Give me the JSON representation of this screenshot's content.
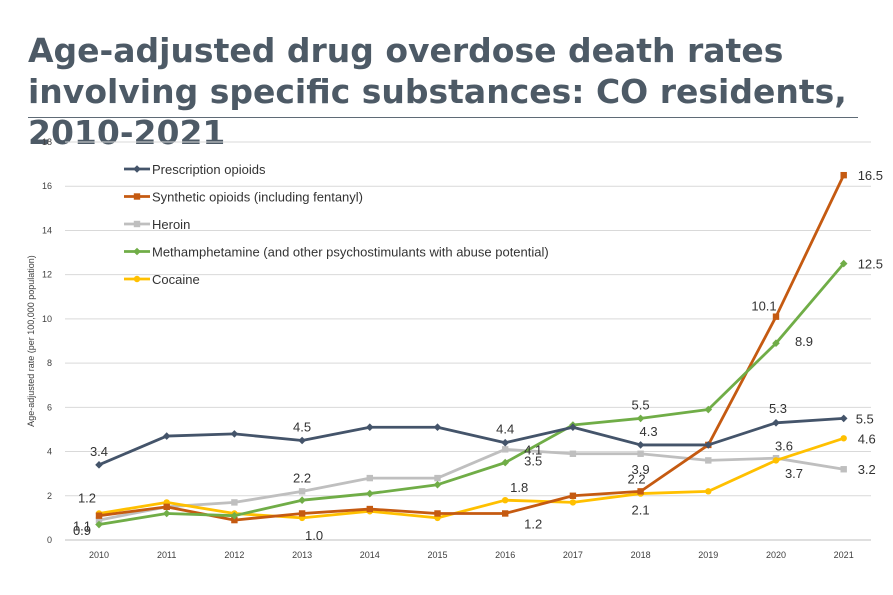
{
  "title": "Age-adjusted drug overdose death rates involving specific substances: CO residents, 2010-2021",
  "chart_data": {
    "type": "line",
    "ylabel": "Age-adjusted rate (per 100,000 population)",
    "xlabel": "",
    "x": [
      2010,
      2011,
      2012,
      2013,
      2014,
      2015,
      2016,
      2017,
      2018,
      2019,
      2020,
      2021
    ],
    "x_tick_labels": [
      "2010",
      "2011",
      "2012",
      "2013",
      "2014",
      "2015",
      "2016",
      "2017",
      "2018",
      "2019",
      "2020",
      "2021"
    ],
    "ylim": [
      0,
      18
    ],
    "y_ticks": [
      0,
      2,
      4,
      6,
      8,
      10,
      12,
      14,
      16,
      18
    ],
    "grid": true,
    "legend_position": "top-left",
    "series": [
      {
        "name": "Prescription opioids",
        "color": "#44546a",
        "marker": "diamond",
        "values": [
          3.4,
          4.7,
          4.8,
          4.5,
          5.1,
          5.1,
          4.4,
          5.1,
          4.3,
          4.3,
          5.3,
          5.5
        ],
        "labels": [
          {
            "x": 2010,
            "text": "3.4"
          },
          {
            "x": 2013,
            "text": "4.5"
          },
          {
            "x": 2016,
            "text": "4.4"
          },
          {
            "x": 2018,
            "text": "4.3"
          },
          {
            "x": 2020,
            "text": "5.3"
          },
          {
            "x": 2021,
            "text": "5.5"
          }
        ]
      },
      {
        "name": "Synthetic opioids (including fentanyl)",
        "color": "#c55a11",
        "marker": "square",
        "values": [
          1.1,
          1.5,
          0.9,
          1.2,
          1.4,
          1.2,
          1.2,
          2.0,
          2.2,
          4.3,
          10.1,
          16.5
        ],
        "labels": [
          {
            "x": 2010,
            "text": "1.1"
          },
          {
            "x": 2016,
            "text": "1.2"
          },
          {
            "x": 2018,
            "text": "2.2"
          },
          {
            "x": 2020,
            "text": "10.1"
          },
          {
            "x": 2021,
            "text": "16.5"
          }
        ]
      },
      {
        "name": "Heroin",
        "color": "#bfbfbf",
        "marker": "square",
        "values": [
          0.9,
          1.5,
          1.7,
          2.2,
          2.8,
          2.8,
          4.1,
          3.9,
          3.9,
          3.6,
          3.7,
          3.2
        ],
        "labels": [
          {
            "x": 2010,
            "text": "0.9"
          },
          {
            "x": 2013,
            "text": "2.2"
          },
          {
            "x": 2016,
            "text": "4.1"
          },
          {
            "x": 2018,
            "text": "3.9"
          },
          {
            "x": 2020,
            "text": "3.7"
          },
          {
            "x": 2021,
            "text": "3.2"
          }
        ]
      },
      {
        "name": "Methamphetamine (and other psychostimulants with abuse potential)",
        "color": "#70ad47",
        "marker": "diamond",
        "values": [
          0.7,
          1.2,
          1.1,
          1.8,
          2.1,
          2.5,
          3.5,
          5.2,
          5.5,
          5.9,
          8.9,
          12.5
        ],
        "labels": [
          {
            "x": 2016,
            "text": "3.5"
          },
          {
            "x": 2018,
            "text": "5.5"
          },
          {
            "x": 2020,
            "text": "8.9"
          },
          {
            "x": 2021,
            "text": "12.5"
          }
        ]
      },
      {
        "name": "Cocaine",
        "color": "#ffc000",
        "marker": "circle",
        "values": [
          1.2,
          1.7,
          1.2,
          1.0,
          1.3,
          1.0,
          1.8,
          1.7,
          2.1,
          2.2,
          3.6,
          4.6
        ],
        "labels": [
          {
            "x": 2010,
            "text": "1.2"
          },
          {
            "x": 2013,
            "text": "1.0"
          },
          {
            "x": 2016,
            "text": "1.8"
          },
          {
            "x": 2018,
            "text": "2.1"
          },
          {
            "x": 2020,
            "text": "3.6"
          },
          {
            "x": 2021,
            "text": "4.6"
          }
        ]
      }
    ]
  }
}
